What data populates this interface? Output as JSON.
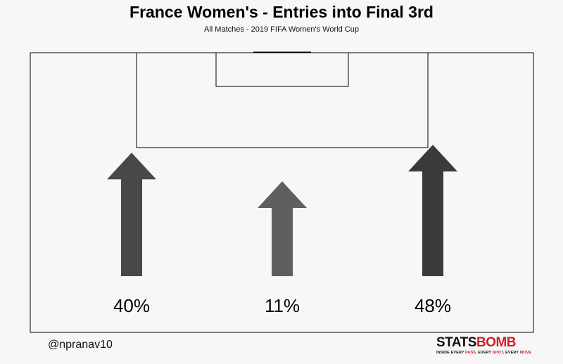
{
  "title": "France Women's - Entries into Final 3rd",
  "subtitle": "All Matches - 2019 FIFA Women's World Cup",
  "credit": "@npranav10",
  "brand": {
    "name_part1": "STATS",
    "name_part2": "BOMB",
    "tagline_1": "INSIDE EVERY ",
    "tagline_2": "PASS",
    "tagline_3": ", EVERY ",
    "tagline_4": "SHOT",
    "tagline_5": ", EVERY ",
    "tagline_6": "MOVE"
  },
  "chart_data": {
    "type": "bar",
    "categories": [
      "Left",
      "Centre",
      "Right"
    ],
    "values": [
      40,
      11,
      48
    ],
    "labels": [
      "40%",
      "11%",
      "48%"
    ],
    "colors": [
      "#484848",
      "#5f5f5f",
      "#3b3b3b"
    ],
    "title": "France Women's - Entries into Final 3rd",
    "subtitle": "All Matches - 2019 FIFA Women's World Cup"
  }
}
